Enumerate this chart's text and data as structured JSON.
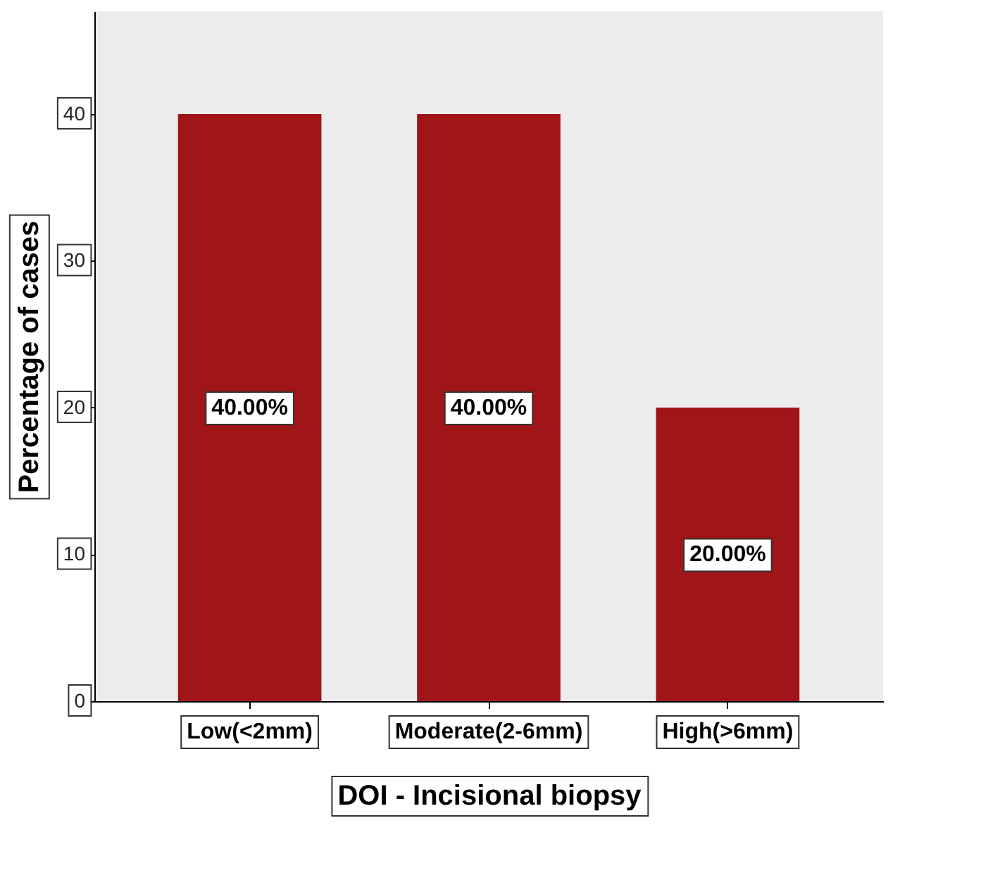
{
  "chart_data": {
    "type": "bar",
    "xlabel": "DOI - Incisional biopsy",
    "ylabel": "Percentage of cases",
    "categories": [
      "Low(<2mm)",
      "Moderate(2-6mm)",
      "High(>6mm)"
    ],
    "values": [
      40,
      40,
      20
    ],
    "color": "#a01518",
    "value_labels": [
      "40.00%",
      "40.00%",
      "20.00%"
    ],
    "ylim": [
      0,
      47
    ],
    "yticks": [
      0,
      10,
      20,
      30,
      40
    ],
    "grid": false
  }
}
